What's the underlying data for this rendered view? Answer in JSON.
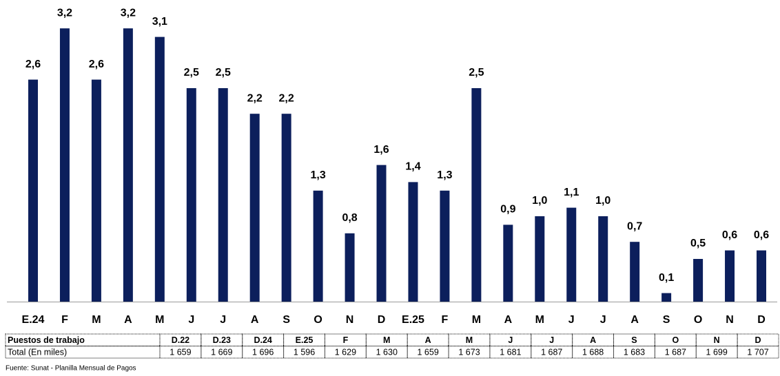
{
  "chart_data": {
    "type": "bar",
    "color": "#0c1f5c",
    "categories": [
      "E.24",
      "F",
      "M",
      "A",
      "M",
      "J",
      "J",
      "A",
      "S",
      "O",
      "N",
      "D",
      "E.25",
      "F",
      "M",
      "A",
      "M",
      "J",
      "J",
      "A",
      "S",
      "O",
      "N",
      "D"
    ],
    "values": [
      2.6,
      3.2,
      2.6,
      3.2,
      3.1,
      2.5,
      2.5,
      2.2,
      2.2,
      1.3,
      0.8,
      1.6,
      1.4,
      1.3,
      2.5,
      0.9,
      1.0,
      1.1,
      1.0,
      0.7,
      0.1,
      0.5,
      0.6,
      0.6
    ],
    "value_labels": [
      "2,6",
      "3,2",
      "2,6",
      "3,2",
      "3,1",
      "2,5",
      "2,5",
      "2,2",
      "2,2",
      "1,3",
      "0,8",
      "1,6",
      "1,4",
      "1,3",
      "2,5",
      "0,9",
      "1,0",
      "1,1",
      "1,0",
      "0,7",
      "0,1",
      "0,5",
      "0,6",
      "0,6"
    ]
  },
  "table": {
    "header": [
      "Puestos de trabajo",
      "D.22",
      "D.23",
      "D.24",
      "E.25",
      "F",
      "M",
      "A",
      "M",
      "J",
      "J",
      "A",
      "S",
      "O",
      "N",
      "D"
    ],
    "rows": [
      [
        "Total (En miles)",
        "1 659",
        "1 669",
        "1 696",
        "1 596",
        "1 629",
        "1 630",
        "1 659",
        "1 673",
        "1 681",
        "1 687",
        "1 688",
        "1 683",
        "1 687",
        "1 699",
        "1 707"
      ]
    ]
  },
  "source": "Fuente: Sunat - Planilla Mensual de Pagos"
}
